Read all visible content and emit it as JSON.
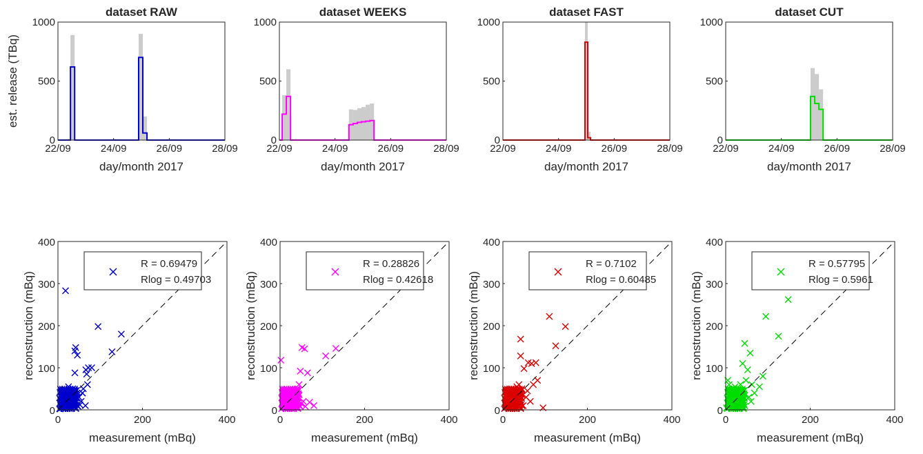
{
  "figure": {
    "top_ylabel": "est. release (TBq)",
    "top_xlabel": "day/month 2017",
    "bottom_ylabel": "reconstruction (mBq)",
    "bottom_xlabel": "measurement (mBq)",
    "top_xticks": [
      "22/09",
      "24/09",
      "26/09",
      "28/09"
    ],
    "top_yticks": [
      "0",
      "500",
      "1000"
    ],
    "bottom_ticks": [
      "0",
      "200",
      "400"
    ],
    "bottom_yticks_extra": [
      "100",
      "300"
    ]
  },
  "chart_data": [
    {
      "type": "line",
      "title": "dataset RAW",
      "color": "#0000cc",
      "xlabel": "day/month 2017",
      "ylabel": "est. release (TBq)",
      "xlim": [
        "22/09",
        "28/09"
      ],
      "ylim": [
        0,
        1000
      ],
      "step_x_days": [
        0.0,
        0.3,
        0.45,
        0.6,
        1.0,
        1.5,
        2.0,
        2.75,
        2.9,
        3.05,
        3.2,
        3.35,
        4.0,
        5.0,
        6.0
      ],
      "estimate": [
        0,
        0,
        620,
        0,
        0,
        0,
        0,
        0,
        700,
        60,
        0,
        0,
        0,
        0
      ],
      "uncertainty_upper": [
        0,
        0,
        890,
        0,
        0,
        0,
        0,
        0,
        900,
        200,
        0,
        0,
        0,
        0
      ]
    },
    {
      "type": "line",
      "title": "dataset WEEKS",
      "color": "#ff00ff",
      "xlabel": "day/month 2017",
      "xlim": [
        "22/09",
        "28/09"
      ],
      "ylim": [
        0,
        1000
      ],
      "step_x_days": [
        0.0,
        0.1,
        0.25,
        0.4,
        0.55,
        2.0,
        2.5,
        2.65,
        2.8,
        2.95,
        3.1,
        3.25,
        3.4,
        3.55,
        3.7,
        4.0,
        5.0,
        6.0
      ],
      "estimate": [
        0,
        220,
        370,
        0,
        0,
        0,
        130,
        140,
        150,
        155,
        160,
        165,
        0,
        0,
        0,
        0,
        0
      ],
      "uncertainty_upper": [
        0,
        380,
        600,
        0,
        0,
        0,
        260,
        255,
        270,
        280,
        300,
        310,
        0,
        0,
        0,
        0,
        0
      ]
    },
    {
      "type": "line",
      "title": "dataset FAST",
      "color": "#dd0000",
      "xlabel": "day/month 2017",
      "xlim": [
        "22/09",
        "28/09"
      ],
      "ylim": [
        0,
        1000
      ],
      "step_x_days": [
        0.0,
        2.8,
        2.95,
        3.05,
        3.15,
        6.0
      ],
      "estimate": [
        0,
        0,
        830,
        20,
        0
      ],
      "uncertainty_upper": [
        0,
        0,
        1000,
        70,
        0
      ]
    },
    {
      "type": "line",
      "title": "dataset CUT",
      "color": "#00dd00",
      "xlabel": "day/month 2017",
      "xlim": [
        "22/09",
        "28/09"
      ],
      "ylim": [
        0,
        1000
      ],
      "step_x_days": [
        0.0,
        2.9,
        3.05,
        3.2,
        3.35,
        3.5,
        6.0
      ],
      "estimate": [
        0,
        0,
        370,
        310,
        260,
        0
      ],
      "uncertainty_upper": [
        0,
        0,
        610,
        560,
        430,
        0
      ]
    },
    {
      "type": "scatter",
      "color": "#0000cc",
      "xlabel": "measurement (mBq)",
      "ylabel": "reconstruction (mBq)",
      "xlim": [
        0,
        400
      ],
      "ylim": [
        0,
        400
      ],
      "legend": {
        "R": "R = 0.69479",
        "Rlog": "Rlog = 0.49703"
      },
      "x": [
        18,
        25,
        32,
        40,
        46,
        58,
        66,
        72,
        95,
        150,
        128,
        68,
        42,
        40,
        35,
        70,
        80,
        65,
        12,
        28,
        38,
        50,
        55,
        60,
        48,
        22,
        35,
        42,
        10,
        30,
        5,
        15,
        20,
        25,
        45,
        52,
        58,
        8,
        33,
        40,
        27,
        18
      ],
      "y": [
        283,
        55,
        45,
        88,
        130,
        40,
        95,
        100,
        198,
        180,
        138,
        85,
        148,
        140,
        50,
        60,
        100,
        10,
        30,
        25,
        45,
        30,
        20,
        50,
        8,
        15,
        35,
        20,
        5,
        10,
        2,
        40,
        12,
        20,
        30,
        12,
        40,
        8,
        25,
        15,
        5,
        18
      ]
    },
    {
      "type": "scatter",
      "color": "#ff00ff",
      "xlabel": "measurement (mBq)",
      "ylabel": "reconstruction (mBq)",
      "xlim": [
        0,
        400
      ],
      "ylim": [
        0,
        400
      ],
      "legend": {
        "R": "R = 0.28826",
        "Rlog": "Rlog = 0.42618"
      },
      "x": [
        2,
        48,
        52,
        58,
        65,
        108,
        132,
        45,
        30,
        35,
        40,
        20,
        25,
        10,
        15,
        50,
        55,
        70,
        80,
        38,
        42,
        28,
        33,
        12,
        18,
        60,
        48,
        8,
        22,
        36
      ],
      "y": [
        118,
        92,
        148,
        145,
        88,
        128,
        146,
        60,
        25,
        40,
        30,
        45,
        15,
        20,
        35,
        15,
        20,
        18,
        10,
        5,
        50,
        10,
        20,
        5,
        28,
        8,
        8,
        40,
        12,
        25
      ]
    },
    {
      "type": "scatter",
      "color": "#dd0000",
      "xlabel": "measurement (mBq)",
      "ylabel": "reconstruction (mBq)",
      "xlim": [
        0,
        400
      ],
      "ylim": [
        0,
        400
      ],
      "legend": {
        "R": "R = 0.7102",
        "Rlog": "Rlog = 0.60485"
      },
      "x": [
        42,
        68,
        110,
        125,
        148,
        42,
        60,
        50,
        78,
        82,
        72,
        95,
        35,
        28,
        20,
        15,
        10,
        45,
        55,
        65,
        38,
        30,
        25,
        5,
        12,
        48,
        58,
        40,
        18,
        33
      ],
      "y": [
        168,
        110,
        222,
        152,
        198,
        128,
        112,
        98,
        112,
        70,
        60,
        5,
        45,
        30,
        50,
        20,
        10,
        50,
        30,
        20,
        60,
        15,
        40,
        5,
        35,
        10,
        45,
        25,
        8,
        55
      ]
    },
    {
      "type": "scatter",
      "color": "#00dd00",
      "xlabel": "measurement (mBq)",
      "ylabel": "reconstruction (mBq)",
      "xlim": [
        0,
        400
      ],
      "ylim": [
        0,
        400
      ],
      "legend": {
        "R": "R = 0.57795",
        "Rlog": "Rlog = 0.5961"
      },
      "x": [
        5,
        125,
        148,
        95,
        45,
        58,
        40,
        52,
        88,
        62,
        80,
        68,
        35,
        28,
        20,
        15,
        10,
        48,
        55,
        38,
        30,
        25,
        2,
        12,
        42,
        60,
        22,
        18,
        33,
        8
      ],
      "y": [
        70,
        175,
        262,
        222,
        158,
        135,
        110,
        95,
        80,
        60,
        55,
        40,
        60,
        30,
        50,
        20,
        10,
        70,
        30,
        45,
        15,
        40,
        5,
        35,
        30,
        20,
        55,
        8,
        25,
        60
      ]
    }
  ]
}
